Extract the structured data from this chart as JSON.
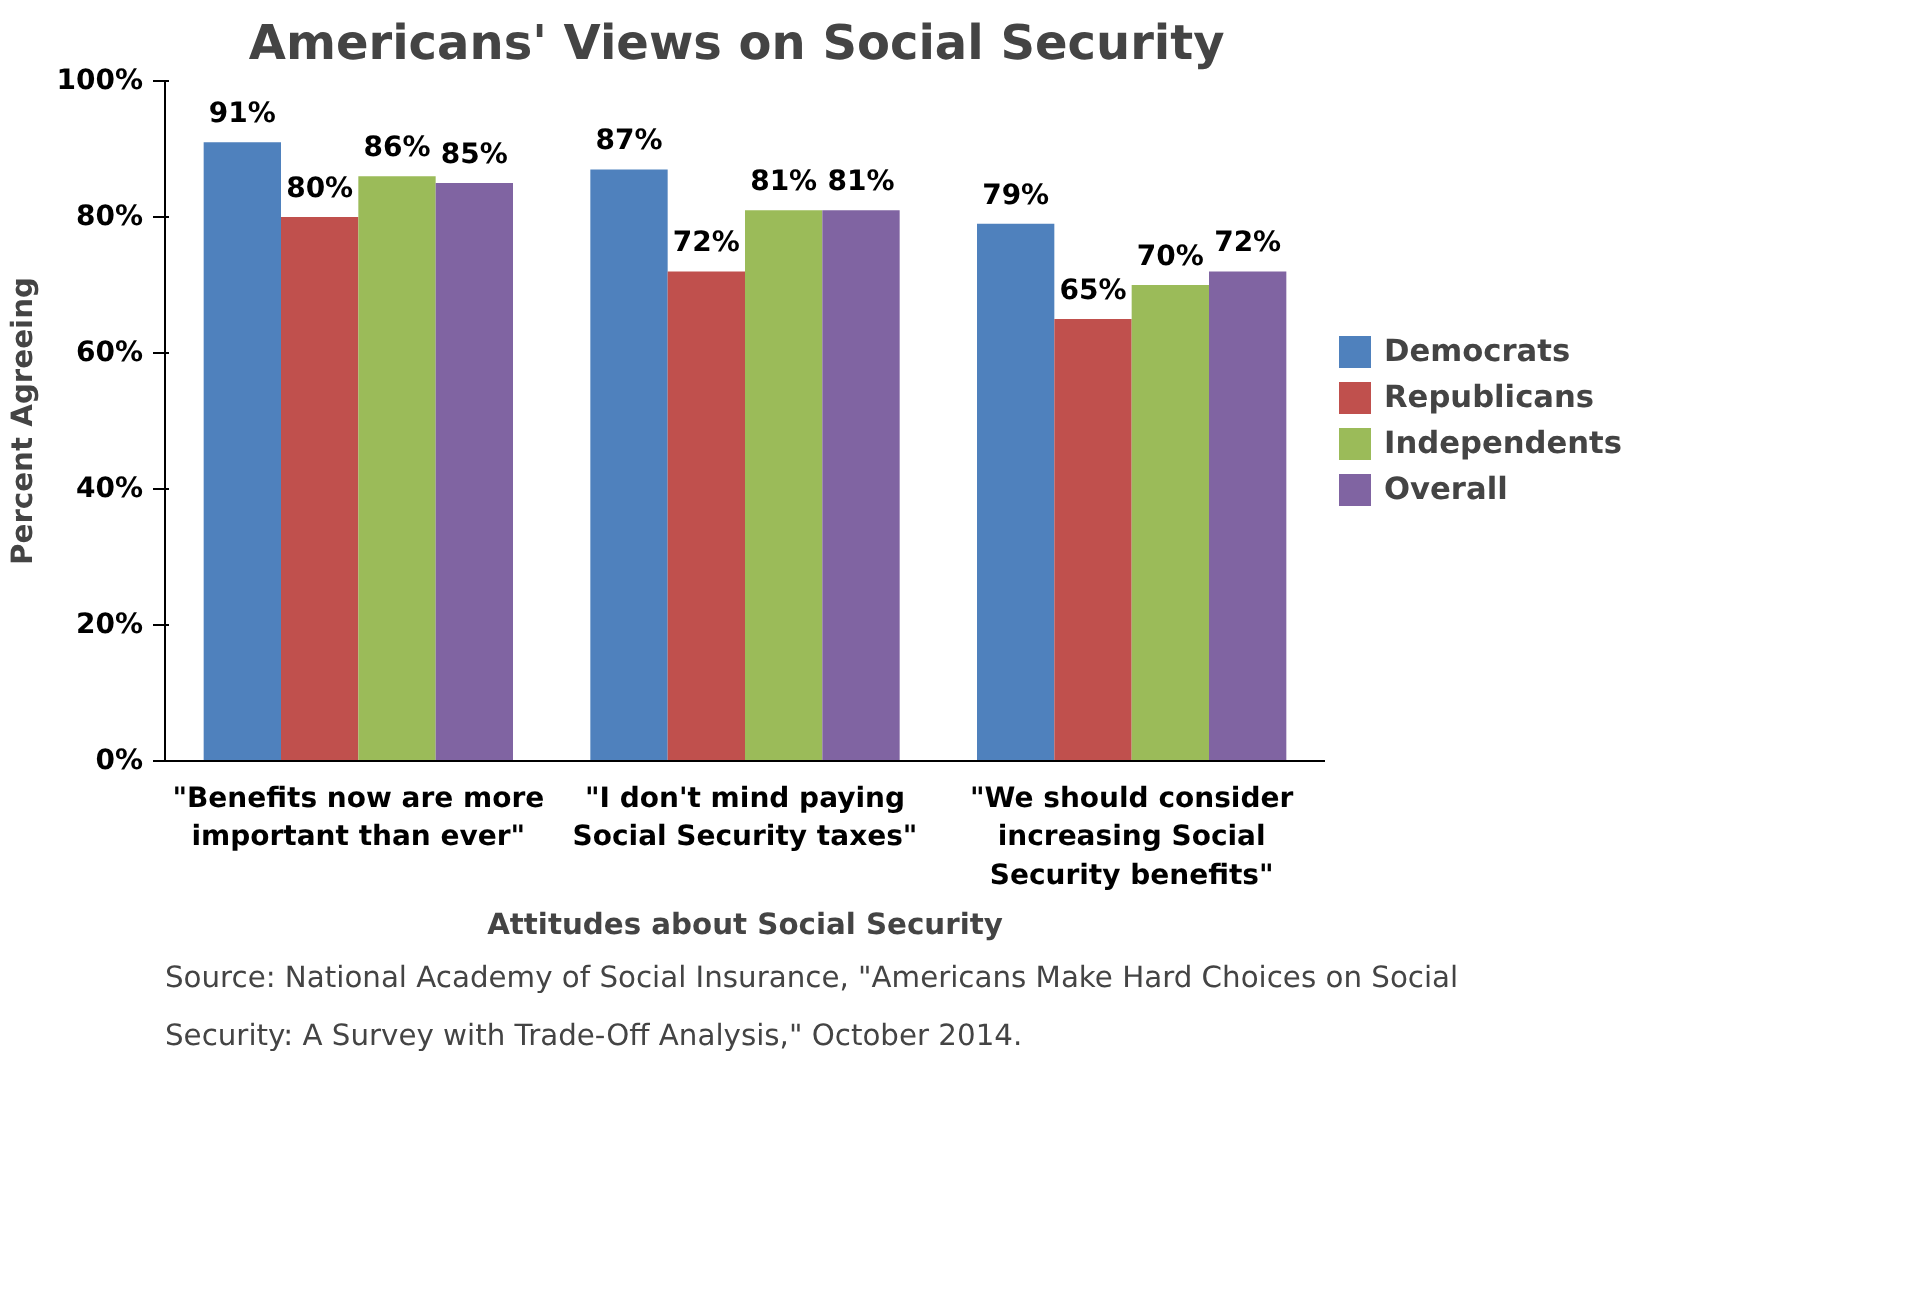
{
  "chart_data": {
    "type": "bar",
    "title": "Americans'  Views on Social Security",
    "xlabel": "Attitudes about Social Security",
    "ylabel": "Percent Agreeing",
    "categories": [
      "\"Benefits now are more important than ever\"",
      "\"I don't mind paying Social Security taxes\"",
      "\"We should consider increasing Social Security benefits\""
    ],
    "series": [
      {
        "name": "Democrats",
        "color": "#4f81bd",
        "values": [
          91,
          87,
          79
        ],
        "value_labels": [
          "91%",
          "87%",
          "79%"
        ]
      },
      {
        "name": "Republicans",
        "color": "#c0504d",
        "values": [
          80,
          72,
          65
        ],
        "value_labels": [
          "80%",
          "72%",
          "65%"
        ]
      },
      {
        "name": "Independents",
        "color": "#9bbb59",
        "values": [
          86,
          81,
          70
        ],
        "value_labels": [
          "86%",
          "81%",
          "70%"
        ]
      },
      {
        "name": "Overall",
        "color": "#8064a2",
        "values": [
          85,
          81,
          72
        ],
        "value_labels": [
          "85%",
          "81%",
          "72%"
        ]
      }
    ],
    "ylim": [
      0,
      100
    ],
    "yticks": [
      {
        "value": 0,
        "label": "0%"
      },
      {
        "value": 20,
        "label": "20%"
      },
      {
        "value": 40,
        "label": "40%"
      },
      {
        "value": 60,
        "label": "60%"
      },
      {
        "value": 80,
        "label": "80%"
      },
      {
        "value": 100,
        "label": "100%"
      }
    ],
    "grid": false,
    "legend": "right",
    "annotations": [
      "Source: National Academy of Social Insurance, \"Americans Make Hard Choices on Social Security: A Survey with Trade-Off Analysis,\" October 2014."
    ]
  }
}
